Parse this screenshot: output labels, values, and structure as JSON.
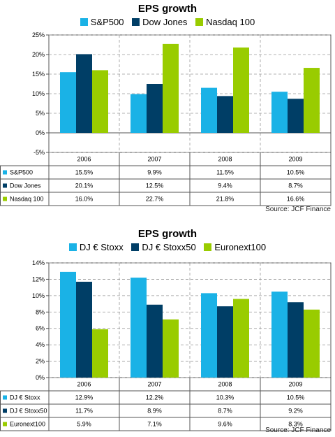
{
  "chart_data": [
    {
      "type": "bar",
      "title": "EPS growth",
      "categories": [
        "2006",
        "2007",
        "2008",
        "2009"
      ],
      "series": [
        {
          "name": "S&P500",
          "color": "#1ab2e6",
          "values": [
            15.5,
            9.9,
            11.5,
            10.5
          ],
          "labels": [
            "15.5%",
            "9.9%",
            "11.5%",
            "10.5%"
          ]
        },
        {
          "name": "Dow  Jones",
          "legend_name": "Dow Jones",
          "color": "#003e66",
          "values": [
            20.1,
            12.5,
            9.4,
            8.7
          ],
          "labels": [
            "20.1%",
            "12.5%",
            "9.4%",
            "8.7%"
          ]
        },
        {
          "name": "Nasdaq 100",
          "color": "#99cc00",
          "values": [
            16.0,
            22.7,
            21.8,
            16.6
          ],
          "labels": [
            "16.0%",
            "22.7%",
            "21.8%",
            "16.6%"
          ]
        }
      ],
      "ylim": [
        -5,
        25
      ],
      "yticks": [
        -5,
        0,
        5,
        10,
        15,
        20,
        25
      ],
      "ytick_labels": [
        "-5%",
        "0%",
        "5%",
        "10%",
        "15%",
        "20%",
        "25%"
      ],
      "grid": true,
      "legend_position": "top",
      "source": "Source: JCF Finance"
    },
    {
      "type": "bar",
      "title": "EPS growth",
      "categories": [
        "2006",
        "2007",
        "2008",
        "2009"
      ],
      "series": [
        {
          "name": "DJ € Stoxx",
          "color": "#1ab2e6",
          "values": [
            12.9,
            12.2,
            10.3,
            10.5
          ],
          "labels": [
            "12.9%",
            "12.2%",
            "10.3%",
            "10.5%"
          ]
        },
        {
          "name": "DJ € Stoxx50",
          "color": "#003e66",
          "values": [
            11.7,
            8.9,
            8.7,
            9.2
          ],
          "labels": [
            "11.7%",
            "8.9%",
            "8.7%",
            "9.2%"
          ]
        },
        {
          "name": "Euronext100",
          "color": "#99cc00",
          "values": [
            5.9,
            7.1,
            9.6,
            8.3
          ],
          "labels": [
            "5.9%",
            "7.1%",
            "9.6%",
            "8.3%"
          ]
        }
      ],
      "ylim": [
        0,
        14
      ],
      "yticks": [
        0,
        2,
        4,
        6,
        8,
        10,
        12,
        14
      ],
      "ytick_labels": [
        "0%",
        "2%",
        "4%",
        "6%",
        "8%",
        "10%",
        "12%",
        "14%"
      ],
      "grid": true,
      "legend_position": "top",
      "source": "Source: JCF Finance"
    }
  ]
}
